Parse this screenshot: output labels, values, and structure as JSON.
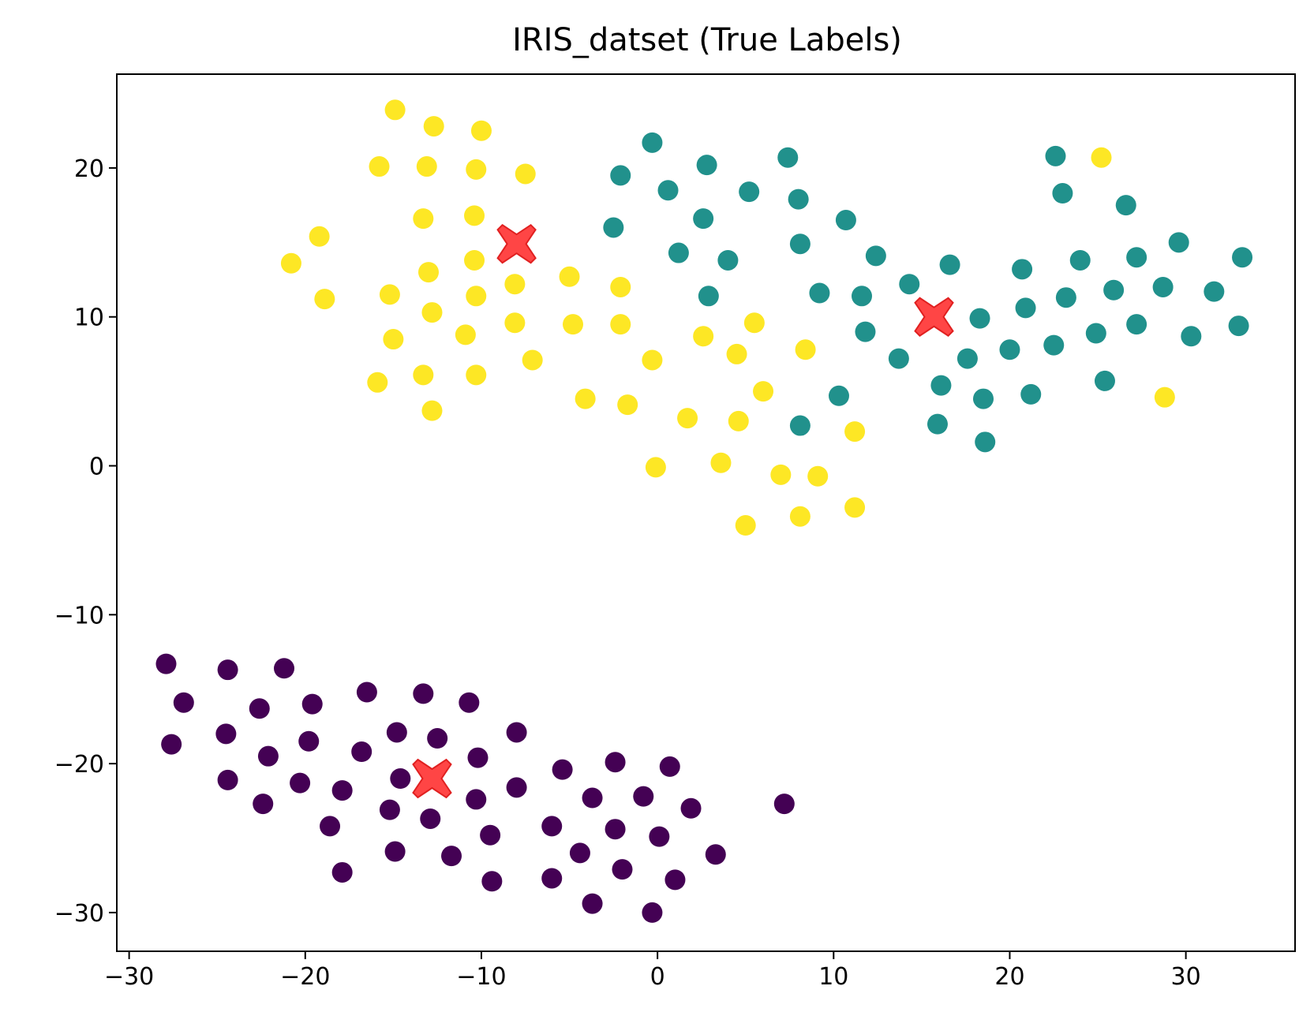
{
  "chart_data": {
    "type": "scatter",
    "title": "IRIS_datset (True Labels)",
    "xlabel": "",
    "ylabel": "",
    "xlim": [
      -30.7,
      36.2
    ],
    "ylim": [
      -32.6,
      26.3
    ],
    "x_ticks": [
      -30,
      -20,
      -10,
      0,
      10,
      20,
      30
    ],
    "y_ticks": [
      20,
      10,
      0,
      -10,
      -20,
      -30
    ],
    "x_tick_labels": [
      "−30",
      "−20",
      "−10",
      "0",
      "10",
      "20",
      "30"
    ],
    "y_tick_labels": [
      "20",
      "10",
      "0",
      "−10",
      "−20",
      "−30"
    ],
    "grid": false,
    "legend": "none",
    "series": [
      {
        "color": "#440154",
        "points": [
          [
            -27.9,
            -13.3
          ],
          [
            -24.4,
            -13.7
          ],
          [
            -21.2,
            -13.6
          ],
          [
            -26.9,
            -15.9
          ],
          [
            -22.6,
            -16.3
          ],
          [
            -19.6,
            -16.0
          ],
          [
            -16.5,
            -15.2
          ],
          [
            -13.3,
            -15.3
          ],
          [
            -10.7,
            -15.9
          ],
          [
            -27.6,
            -18.7
          ],
          [
            -24.5,
            -18.0
          ],
          [
            -19.8,
            -18.5
          ],
          [
            -14.8,
            -17.9
          ],
          [
            -12.5,
            -18.3
          ],
          [
            -8.0,
            -17.9
          ],
          [
            -22.1,
            -19.5
          ],
          [
            -16.8,
            -19.2
          ],
          [
            -10.2,
            -19.6
          ],
          [
            -24.4,
            -21.1
          ],
          [
            -20.3,
            -21.3
          ],
          [
            -17.9,
            -21.8
          ],
          [
            -14.6,
            -21.0
          ],
          [
            -15.2,
            -23.1
          ],
          [
            -12.9,
            -23.7
          ],
          [
            -10.3,
            -22.4
          ],
          [
            -8.0,
            -21.6
          ],
          [
            -5.4,
            -20.4
          ],
          [
            -2.4,
            -19.9
          ],
          [
            0.7,
            -20.2
          ],
          [
            -22.4,
            -22.7
          ],
          [
            -3.7,
            -22.3
          ],
          [
            -0.8,
            -22.2
          ],
          [
            1.9,
            -23.0
          ],
          [
            7.2,
            -22.7
          ],
          [
            -18.6,
            -24.2
          ],
          [
            -14.9,
            -25.9
          ],
          [
            -11.7,
            -26.2
          ],
          [
            -9.5,
            -24.8
          ],
          [
            -6.0,
            -24.2
          ],
          [
            -2.4,
            -24.4
          ],
          [
            0.1,
            -24.9
          ],
          [
            -17.9,
            -27.3
          ],
          [
            -9.4,
            -27.9
          ],
          [
            -6.0,
            -27.7
          ],
          [
            -4.4,
            -26.0
          ],
          [
            -2.0,
            -27.1
          ],
          [
            1.0,
            -27.8
          ],
          [
            3.3,
            -26.1
          ],
          [
            -3.7,
            -29.4
          ],
          [
            -0.3,
            -30.0
          ]
        ]
      },
      {
        "color": "#21918c",
        "points": [
          [
            -0.3,
            21.7
          ],
          [
            -2.1,
            19.5
          ],
          [
            0.6,
            18.5
          ],
          [
            2.8,
            20.2
          ],
          [
            7.4,
            20.7
          ],
          [
            5.2,
            18.4
          ],
          [
            8.0,
            17.9
          ],
          [
            -2.5,
            16.0
          ],
          [
            2.6,
            16.6
          ],
          [
            10.7,
            16.5
          ],
          [
            1.2,
            14.3
          ],
          [
            4.0,
            13.8
          ],
          [
            8.1,
            14.9
          ],
          [
            12.4,
            14.1
          ],
          [
            2.9,
            11.4
          ],
          [
            9.2,
            11.6
          ],
          [
            11.6,
            11.4
          ],
          [
            14.3,
            12.2
          ],
          [
            16.6,
            13.5
          ],
          [
            11.8,
            9.0
          ],
          [
            13.7,
            7.2
          ],
          [
            16.1,
            5.4
          ],
          [
            17.6,
            7.2
          ],
          [
            18.5,
            4.5
          ],
          [
            20.0,
            7.8
          ],
          [
            18.3,
            9.9
          ],
          [
            15.9,
            2.8
          ],
          [
            18.6,
            1.6
          ],
          [
            10.3,
            4.7
          ],
          [
            8.1,
            2.7
          ],
          [
            20.7,
            13.2
          ],
          [
            20.9,
            10.6
          ],
          [
            21.2,
            4.8
          ],
          [
            22.5,
            8.1
          ],
          [
            23.2,
            11.3
          ],
          [
            24.0,
            13.8
          ],
          [
            22.6,
            20.8
          ],
          [
            23.0,
            18.3
          ],
          [
            26.6,
            17.5
          ],
          [
            27.2,
            14.0
          ],
          [
            25.9,
            11.8
          ],
          [
            24.9,
            8.9
          ],
          [
            27.2,
            9.5
          ],
          [
            25.4,
            5.7
          ],
          [
            28.7,
            12.0
          ],
          [
            29.6,
            15.0
          ],
          [
            31.6,
            11.7
          ],
          [
            33.2,
            14.0
          ],
          [
            30.3,
            8.7
          ],
          [
            33.0,
            9.4
          ]
        ]
      },
      {
        "color": "#fde725",
        "points": [
          [
            -14.9,
            23.9
          ],
          [
            -12.7,
            22.8
          ],
          [
            -10.0,
            22.5
          ],
          [
            -15.8,
            20.1
          ],
          [
            -13.1,
            20.1
          ],
          [
            -10.3,
            19.9
          ],
          [
            -7.5,
            19.6
          ],
          [
            -13.3,
            16.6
          ],
          [
            -10.4,
            16.8
          ],
          [
            -19.2,
            15.4
          ],
          [
            -20.8,
            13.6
          ],
          [
            -18.9,
            11.2
          ],
          [
            -15.2,
            11.5
          ],
          [
            -13.0,
            13.0
          ],
          [
            -10.4,
            13.8
          ],
          [
            -10.3,
            11.4
          ],
          [
            -12.8,
            10.3
          ],
          [
            -15.0,
            8.5
          ],
          [
            -10.9,
            8.8
          ],
          [
            -8.1,
            12.2
          ],
          [
            -8.1,
            9.6
          ],
          [
            -5.0,
            12.7
          ],
          [
            -4.8,
            9.5
          ],
          [
            -2.1,
            12.0
          ],
          [
            -2.1,
            9.5
          ],
          [
            -13.3,
            6.1
          ],
          [
            -10.3,
            6.1
          ],
          [
            -7.1,
            7.1
          ],
          [
            -15.9,
            5.6
          ],
          [
            -12.8,
            3.7
          ],
          [
            -4.1,
            4.5
          ],
          [
            -1.7,
            4.1
          ],
          [
            -0.3,
            7.1
          ],
          [
            2.6,
            8.7
          ],
          [
            4.5,
            7.5
          ],
          [
            5.5,
            9.6
          ],
          [
            8.4,
            7.8
          ],
          [
            6.0,
            5.0
          ],
          [
            1.7,
            3.2
          ],
          [
            4.6,
            3.0
          ],
          [
            11.2,
            2.3
          ],
          [
            -0.1,
            -0.1
          ],
          [
            3.6,
            0.2
          ],
          [
            7.0,
            -0.6
          ],
          [
            9.1,
            -0.7
          ],
          [
            5.0,
            -4.0
          ],
          [
            8.1,
            -3.4
          ],
          [
            11.2,
            -2.8
          ],
          [
            25.2,
            20.7
          ],
          [
            28.8,
            4.6
          ]
        ]
      }
    ],
    "centroids": {
      "color": "#ff3b3b",
      "marker": "x",
      "points": [
        [
          -8.0,
          14.9
        ],
        [
          15.7,
          10.0
        ],
        [
          -12.8,
          -21.0
        ]
      ]
    }
  }
}
